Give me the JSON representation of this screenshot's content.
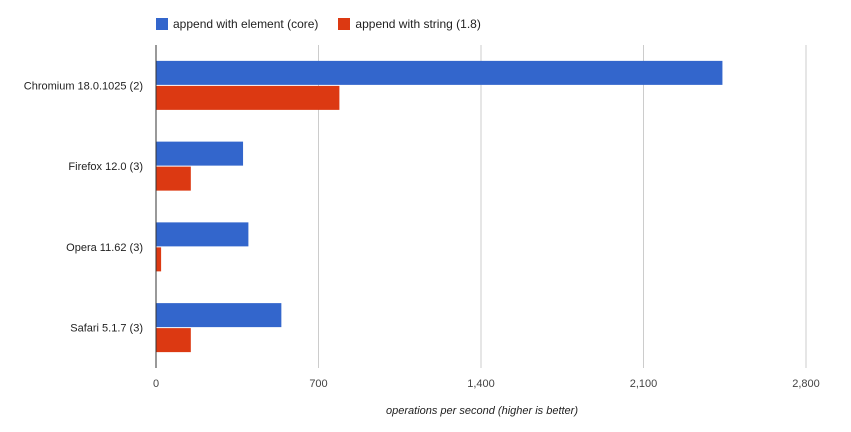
{
  "chart_data": {
    "type": "bar",
    "orientation": "horizontal",
    "categories": [
      "Chromium 18.0.1025 (2)",
      "Firefox 12.0 (3)",
      "Opera 11.62 (3)",
      "Safari 5.1.7 (3)"
    ],
    "series": [
      {
        "name": "append with element (core)",
        "color": "#3366cc",
        "values": [
          2440,
          375,
          398,
          540
        ]
      },
      {
        "name": "append with string (1.8)",
        "color": "#dc3912",
        "values": [
          790,
          150,
          22,
          150
        ]
      }
    ],
    "xlabel": "operations per second (higher is better)",
    "ylabel": "",
    "xlim": [
      0,
      2800
    ],
    "ticks": [
      0,
      700,
      1400,
      2100,
      2800
    ],
    "tick_labels": [
      "0",
      "700",
      "1,400",
      "2,100",
      "2,800"
    ],
    "grid": true,
    "legend_position": "top"
  }
}
